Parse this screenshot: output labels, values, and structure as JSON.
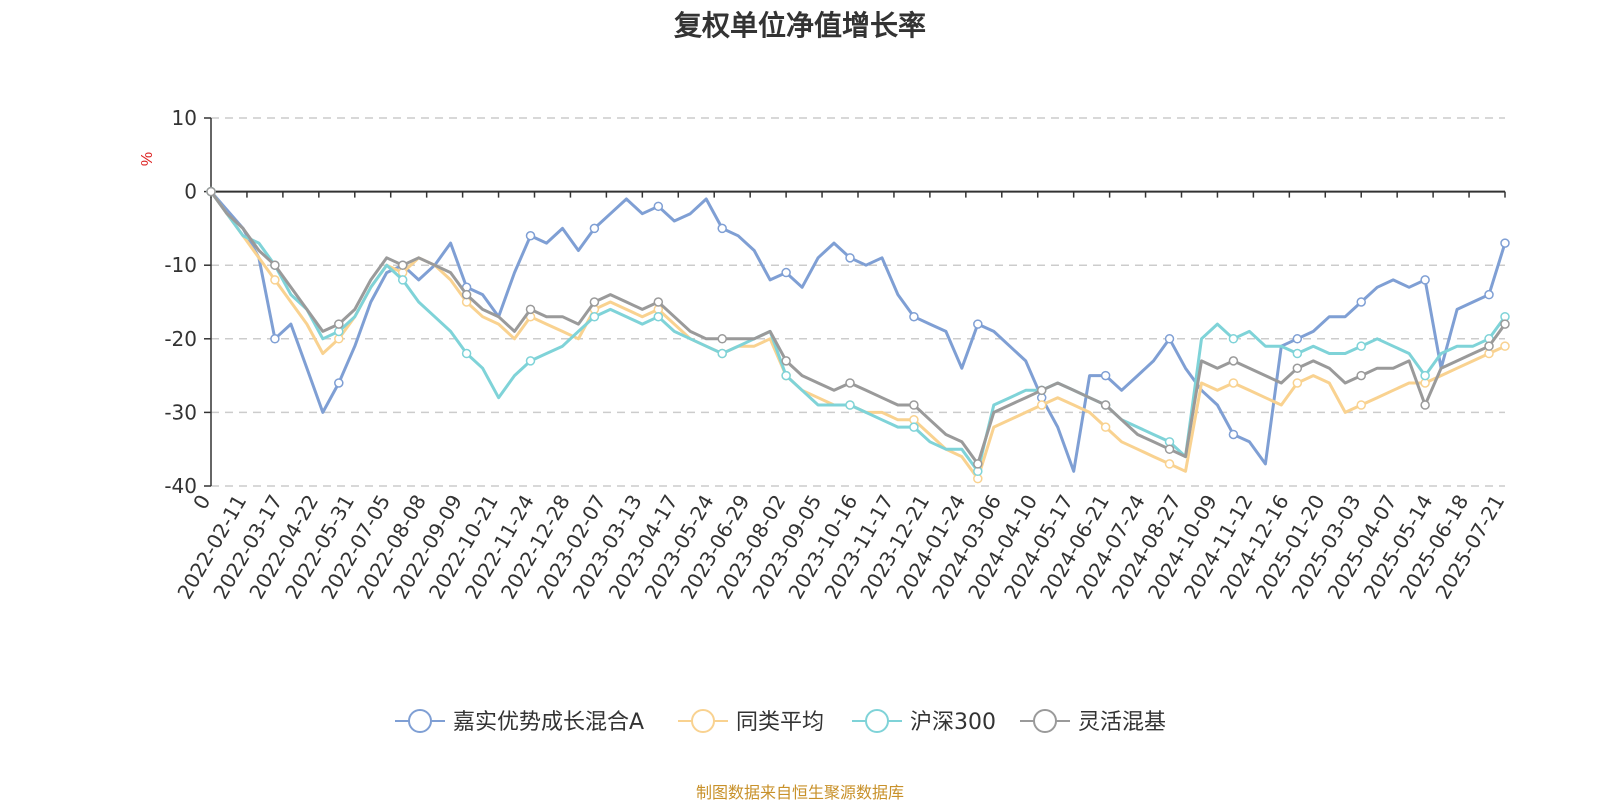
{
  "title": "复权单位净值增长率",
  "source_note": "制图数据来自恒生聚源数据库",
  "chart_data": {
    "type": "line",
    "title": "复权单位净值增长率",
    "ylabel": "%",
    "ylim": [
      -40,
      10
    ],
    "yticks": [
      10,
      0,
      -10,
      -20,
      -30,
      -40
    ],
    "grid": true,
    "legend_position": "bottom",
    "x_tick_labels": [
      "0",
      "2022-02-11",
      "2022-03-17",
      "2022-04-22",
      "2022-05-31",
      "2022-07-05",
      "2022-08-08",
      "2022-09-09",
      "2022-10-21",
      "2022-11-24",
      "2022-12-28",
      "2023-02-07",
      "2023-03-13",
      "2023-04-17",
      "2023-05-24",
      "2023-06-29",
      "2023-08-02",
      "2023-09-05",
      "2023-10-16",
      "2023-11-17",
      "2023-12-21",
      "2024-01-24",
      "2024-03-06",
      "2024-04-10",
      "2024-05-17",
      "2024-06-21",
      "2024-07-24",
      "2024-08-27",
      "2024-10-09",
      "2024-11-12",
      "2024-12-16",
      "2025-01-20",
      "2025-03-03",
      "2025-04-07",
      "2025-05-14",
      "2025-06-18",
      "2025-07-21"
    ],
    "series": [
      {
        "name": "嘉实优势成长混合A",
        "color": "#7f9fd4",
        "values": [
          0,
          -2.5,
          -5,
          -9,
          -20,
          -18,
          -24,
          -30,
          -26,
          -21,
          -15,
          -11,
          -10,
          -12,
          -10,
          -7,
          -13,
          -14,
          -17,
          -11,
          -6,
          -7,
          -5,
          -8,
          -5,
          -3,
          -1,
          -3,
          -2,
          -4,
          -3,
          -1,
          -5,
          -6,
          -8,
          -12,
          -11,
          -13,
          -9,
          -7,
          -9,
          -10,
          -9,
          -14,
          -17,
          -18,
          -19,
          -24,
          -18,
          -19,
          -21,
          -23,
          -28,
          -32,
          -38,
          -25,
          -25,
          -27,
          -25,
          -23,
          -20,
          -24,
          -27,
          -29,
          -33,
          -34,
          -37,
          -21,
          -20,
          -19,
          -17,
          -17,
          -15,
          -13,
          -12,
          -13,
          -12,
          -24,
          -16,
          -15,
          -14,
          -7
        ]
      },
      {
        "name": "同类平均",
        "color": "#f9d290",
        "values": [
          0,
          -3,
          -6,
          -9,
          -12,
          -15,
          -18,
          -22,
          -20,
          -17,
          -13,
          -10,
          -11,
          -9,
          -10,
          -12,
          -15,
          -17,
          -18,
          -20,
          -17,
          -18,
          -19,
          -20,
          -16,
          -15,
          -16,
          -17,
          -16,
          -18,
          -20,
          -21,
          -22,
          -21,
          -21,
          -20,
          -25,
          -27,
          -28,
          -29,
          -29,
          -30,
          -30,
          -31,
          -31,
          -33,
          -35,
          -36,
          -39,
          -32,
          -31,
          -30,
          -29,
          -28,
          -29,
          -30,
          -32,
          -34,
          -35,
          -36,
          -37,
          -38,
          -26,
          -27,
          -26,
          -27,
          -28,
          -29,
          -26,
          -25,
          -26,
          -30,
          -29,
          -28,
          -27,
          -26,
          -26,
          -25,
          -24,
          -23,
          -22,
          -21
        ]
      },
      {
        "name": "沪深300",
        "color": "#7fd3d8",
        "values": [
          0,
          -3,
          -6,
          -7,
          -10,
          -14,
          -16,
          -20,
          -19,
          -17,
          -13,
          -10,
          -12,
          -15,
          -17,
          -19,
          -22,
          -24,
          -28,
          -25,
          -23,
          -22,
          -21,
          -19,
          -17,
          -16,
          -17,
          -18,
          -17,
          -19,
          -20,
          -21,
          -22,
          -21,
          -20,
          -19,
          -25,
          -27,
          -29,
          -29,
          -29,
          -30,
          -31,
          -32,
          -32,
          -34,
          -35,
          -35,
          -38,
          -29,
          -28,
          -27,
          -27,
          -26,
          -27,
          -28,
          -29,
          -31,
          -32,
          -33,
          -34,
          -36,
          -20,
          -18,
          -20,
          -19,
          -21,
          -21,
          -22,
          -21,
          -22,
          -22,
          -21,
          -20,
          -21,
          -22,
          -25,
          -22,
          -21,
          -21,
          -20,
          -17
        ]
      },
      {
        "name": "灵活混基",
        "color": "#9a9a9a",
        "values": [
          0,
          -3,
          -5,
          -8,
          -10,
          -13,
          -16,
          -19,
          -18,
          -16,
          -12,
          -9,
          -10,
          -9,
          -10,
          -11,
          -14,
          -16,
          -17,
          -19,
          -16,
          -17,
          -17,
          -18,
          -15,
          -14,
          -15,
          -16,
          -15,
          -17,
          -19,
          -20,
          -20,
          -20,
          -20,
          -19,
          -23,
          -25,
          -26,
          -27,
          -26,
          -27,
          -28,
          -29,
          -29,
          -31,
          -33,
          -34,
          -37,
          -30,
          -29,
          -28,
          -27,
          -26,
          -27,
          -28,
          -29,
          -31,
          -33,
          -34,
          -35,
          -36,
          -23,
          -24,
          -23,
          -24,
          -25,
          -26,
          -24,
          -23,
          -24,
          -26,
          -25,
          -24,
          -24,
          -23,
          -29,
          -24,
          -23,
          -22,
          -21,
          -18
        ]
      }
    ]
  }
}
